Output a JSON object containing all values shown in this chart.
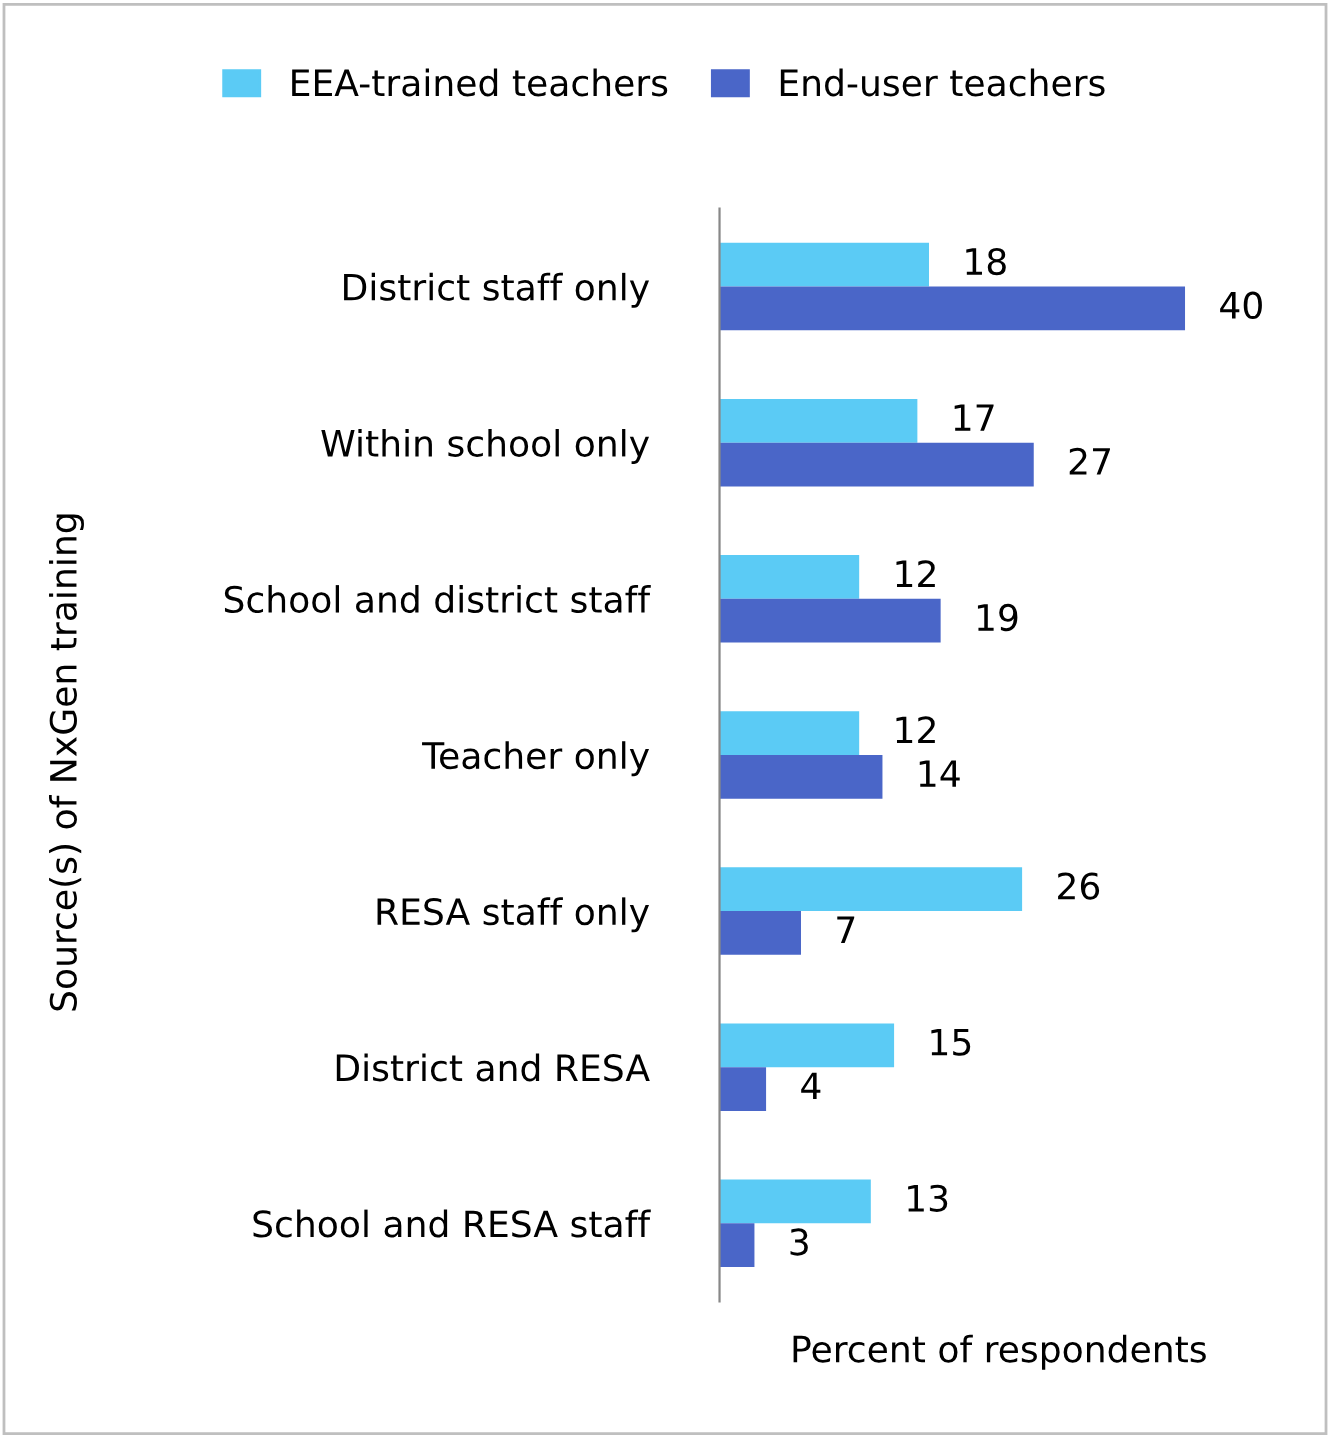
{
  "chart_data": {
    "type": "bar",
    "orientation": "horizontal",
    "ylabel": "Source(s) of NxGen training",
    "xlabel": "Percent of respondents",
    "categories": [
      "District staff only",
      "Within school only",
      "School and district staff",
      "Teacher only",
      "RESA staff only",
      "District and RESA",
      "School and RESA staff"
    ],
    "series": [
      {
        "name": "EEA-trained teachers",
        "color": "#5bcbf5",
        "values": [
          18,
          17,
          12,
          12,
          26,
          15,
          13
        ]
      },
      {
        "name": "End-user teachers",
        "color": "#4a66c8",
        "values": [
          40,
          27,
          19,
          14,
          7,
          4,
          3
        ]
      }
    ],
    "data_labels": true,
    "tick_labels": "y",
    "legend": "top",
    "grid": false
  }
}
